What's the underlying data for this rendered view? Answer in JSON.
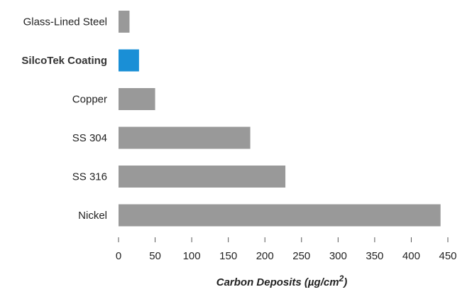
{
  "chart_data": {
    "type": "bar",
    "orientation": "horizontal",
    "categories": [
      "Glass-Lined Steel",
      "SilcoTek Coating",
      "Copper",
      "SS 304",
      "SS 316",
      "Nickel"
    ],
    "values": [
      15,
      28,
      50,
      180,
      228,
      440
    ],
    "highlight": "SilcoTek Coating",
    "xlabel_main": "Carbon Deposits (µg/cm",
    "xlabel_sup": "2",
    "xlabel_tail": ")",
    "xlim": [
      0,
      450
    ],
    "xticks": [
      0,
      50,
      100,
      150,
      200,
      250,
      300,
      350,
      400,
      450
    ],
    "grid": false,
    "colors": {
      "bar": "#999999",
      "highlight": "#1a8fd6"
    }
  }
}
